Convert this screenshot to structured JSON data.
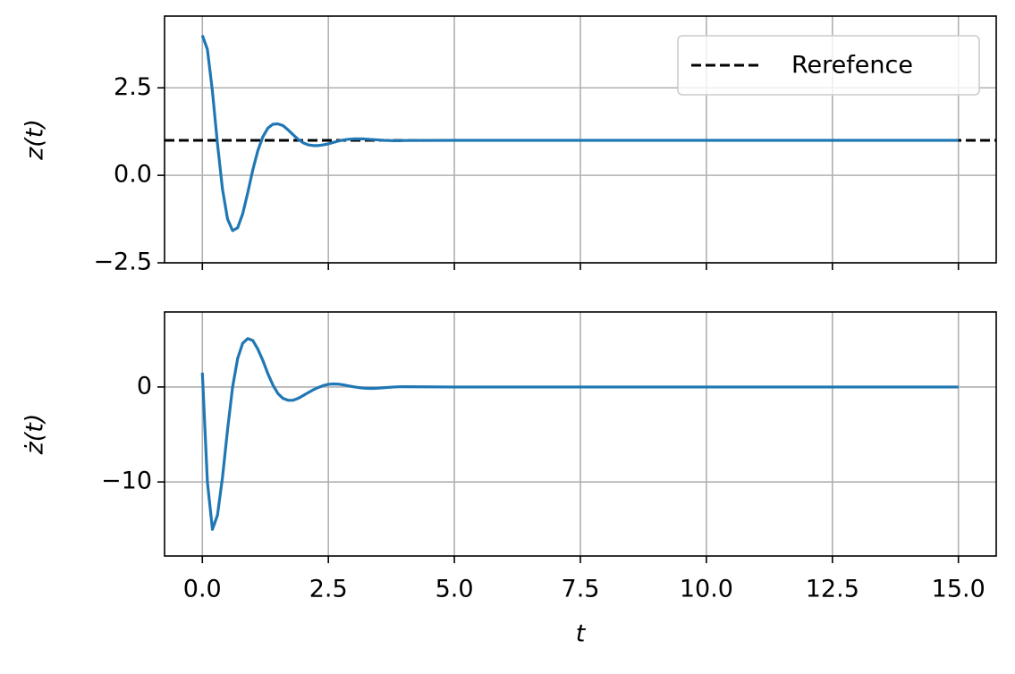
{
  "chart_data": [
    {
      "type": "line",
      "ylabel": "z(t)",
      "color": "#1f77b4",
      "x": [
        0,
        0.1,
        0.2,
        0.3,
        0.4,
        0.5,
        0.6,
        0.7,
        0.8,
        0.9,
        1.0,
        1.1,
        1.2,
        1.3,
        1.4,
        1.5,
        1.6,
        1.7,
        1.8,
        1.9,
        2.0,
        2.1,
        2.2,
        2.3,
        2.4,
        2.5,
        2.6,
        2.7,
        2.8,
        2.9,
        3.0,
        3.1,
        3.2,
        3.3,
        3.4,
        3.5,
        3.6,
        3.7,
        3.8,
        3.9,
        4.0,
        5,
        6,
        7,
        8,
        9,
        10,
        11,
        12,
        13,
        14,
        15
      ],
      "values": [
        4.0,
        3.6,
        2.4,
        0.9,
        -0.4,
        -1.25,
        -1.58,
        -1.5,
        -1.1,
        -0.5,
        0.15,
        0.7,
        1.1,
        1.35,
        1.46,
        1.47,
        1.42,
        1.3,
        1.16,
        1.03,
        0.93,
        0.87,
        0.85,
        0.85,
        0.87,
        0.9,
        0.94,
        0.98,
        1.01,
        1.03,
        1.04,
        1.04,
        1.04,
        1.03,
        1.02,
        1.01,
        1.0,
        0.995,
        0.99,
        0.99,
        0.995,
        1,
        1,
        1,
        1,
        1,
        1,
        1,
        1,
        1,
        1,
        1
      ],
      "reference": {
        "name": "Rerefence",
        "value": 1,
        "color": "#000000",
        "dashed": true
      },
      "legend": "upper right",
      "xlim": [
        -0.75,
        15.75
      ],
      "ylim": [
        -2.5,
        4.55
      ],
      "yticks": [
        {
          "value": -2.5,
          "label": "−2.5"
        },
        {
          "value": 0,
          "label": "0.0"
        },
        2.5
      ],
      "grid": true
    },
    {
      "type": "line",
      "ylabel": "ż(t)",
      "xlabel": "t",
      "color": "#1f77b4",
      "x": [
        0,
        0.1,
        0.2,
        0.3,
        0.4,
        0.5,
        0.6,
        0.7,
        0.8,
        0.9,
        1.0,
        1.1,
        1.2,
        1.3,
        1.4,
        1.5,
        1.6,
        1.7,
        1.8,
        1.9,
        2.0,
        2.1,
        2.2,
        2.3,
        2.4,
        2.5,
        2.6,
        2.7,
        2.8,
        2.9,
        3.0,
        3.1,
        3.2,
        3.3,
        3.4,
        3.5,
        3.6,
        3.7,
        3.8,
        3.9,
        4.0,
        5,
        6,
        7,
        8,
        9,
        10,
        11,
        12,
        13,
        14,
        15
      ],
      "values": [
        1.5,
        -10,
        -15,
        -13.5,
        -9.5,
        -4.5,
        0,
        3,
        4.6,
        5.1,
        4.9,
        4.0,
        2.8,
        1.4,
        0.2,
        -0.7,
        -1.2,
        -1.4,
        -1.4,
        -1.2,
        -0.9,
        -0.6,
        -0.3,
        -0.05,
        0.15,
        0.28,
        0.32,
        0.3,
        0.22,
        0.12,
        0.02,
        -0.06,
        -0.12,
        -0.15,
        -0.15,
        -0.12,
        -0.08,
        -0.04,
        0,
        0.02,
        0.03,
        0,
        0,
        0,
        0,
        0,
        0,
        0,
        0,
        0,
        0,
        0
      ],
      "xlim": [
        -0.75,
        15.75
      ],
      "ylim": [
        -17.8,
        7.9
      ],
      "xticks": [
        {
          "value": 0,
          "label": "0.0"
        },
        2.5,
        {
          "value": 5,
          "label": "5.0"
        },
        7.5,
        {
          "value": 10,
          "label": "10.0"
        },
        12.5,
        {
          "value": 15,
          "label": "15.0"
        }
      ],
      "yticks": [
        {
          "value": -10,
          "label": "−10"
        },
        0
      ],
      "grid": true
    }
  ]
}
